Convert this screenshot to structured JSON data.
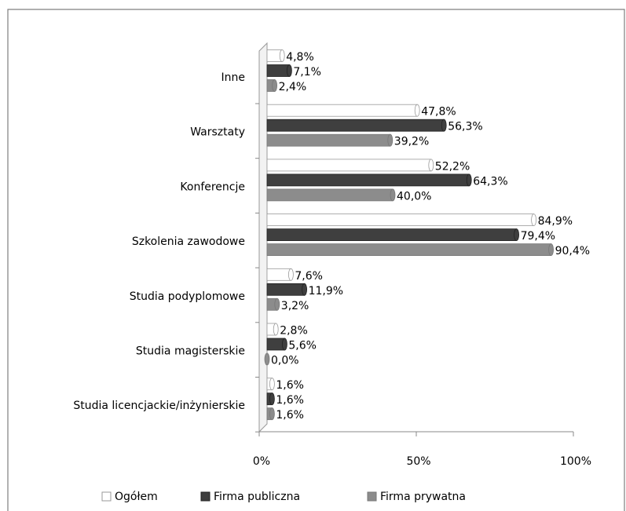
{
  "chart_data": {
    "type": "bar",
    "orientation": "horizontal",
    "categories": [
      "Inne",
      "Warsztaty",
      "Konferencje",
      "Szkolenia zawodowe",
      "Studia podyplomowe",
      "Studia magisterskie",
      "Studia licencjackie/inżynierskie"
    ],
    "series": [
      {
        "name": "Ogółem",
        "color": "#ffffff",
        "values": [
          4.8,
          47.8,
          52.2,
          84.9,
          7.6,
          2.8,
          1.6
        ],
        "value_labels": [
          "4,8%",
          "47,8%",
          "52,2%",
          "84,9%",
          "7,6%",
          "2,8%",
          "1,6%"
        ]
      },
      {
        "name": "Firma publiczna",
        "color": "#3f3f3f",
        "values": [
          7.1,
          56.3,
          64.3,
          79.4,
          11.9,
          5.6,
          1.6
        ],
        "value_labels": [
          "7,1%",
          "56,3%",
          "64,3%",
          "79,4%",
          "11,9%",
          "5,6%",
          "1,6%"
        ]
      },
      {
        "name": "Firma prywatna",
        "color": "#8c8c8c",
        "values": [
          2.4,
          39.2,
          40.0,
          90.4,
          3.2,
          0.0,
          1.6
        ],
        "value_labels": [
          "2,4%",
          "39,2%",
          "40,0%",
          "90,4%",
          "3,2%",
          "0,0%",
          "1,6%"
        ]
      }
    ],
    "xlim": [
      0,
      100
    ],
    "xticks": [
      {
        "value": 0,
        "label": "0%"
      },
      {
        "value": 50,
        "label": "50%"
      },
      {
        "value": 100,
        "label": "100%"
      }
    ],
    "legend": "bottom"
  }
}
